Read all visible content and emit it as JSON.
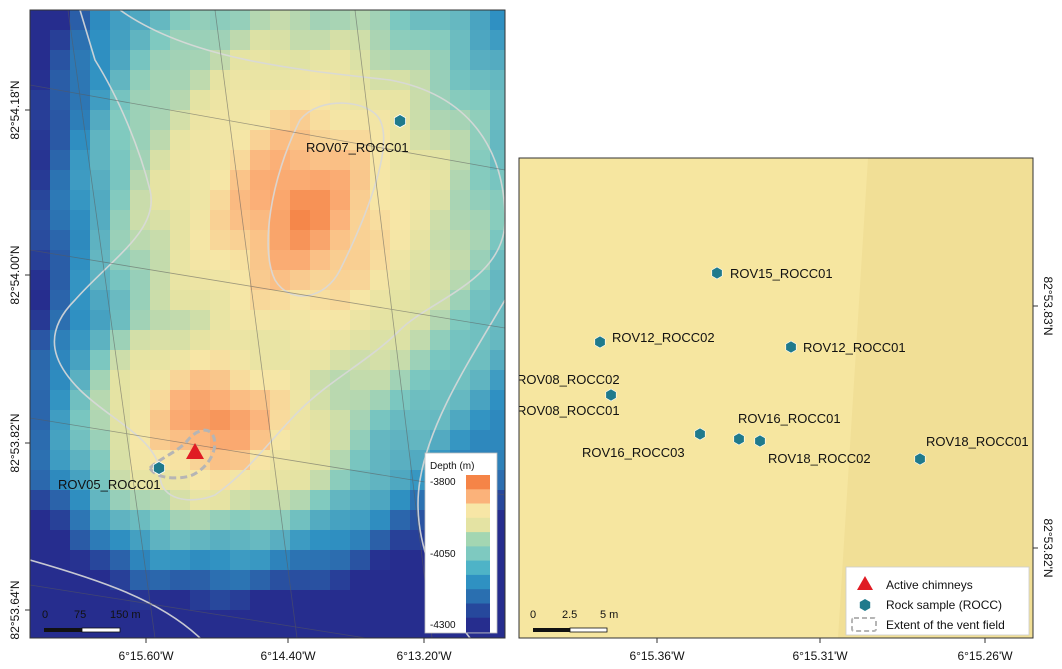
{
  "left_map": {
    "lat_labels": [
      "82°54.18'N",
      "82°54.00'N",
      "82°53.82'N",
      "82°53.64'N"
    ],
    "lon_labels": [
      "6°15.60'W",
      "6°14.40'W",
      "6°13.20'W"
    ],
    "samples": [
      {
        "label": "ROV07_ROCC01"
      },
      {
        "label": "ROV05_ROCC01"
      }
    ],
    "legend": {
      "title": "Depth (m)",
      "ticks": [
        "-3800",
        "-4050",
        "-4300"
      ],
      "colors": [
        "#f58447",
        "#fbb27a",
        "#f7e6a6",
        "#e4e3a3",
        "#a3d6b2",
        "#7ec9c0",
        "#4eb3c7",
        "#2f91c2",
        "#2a6fb0",
        "#26489c",
        "#262d8e"
      ]
    },
    "scalebar": {
      "labels": [
        "0",
        "75",
        "150 m"
      ]
    }
  },
  "right_map": {
    "lat_labels": [
      "82°53.83'N",
      "82°53.82'N"
    ],
    "lon_labels": [
      "6°15.36'W",
      "6°15.31'W",
      "6°15.26'W"
    ],
    "samples": [
      {
        "label": "ROV15_ROCC01"
      },
      {
        "label": "ROV12_ROCC02"
      },
      {
        "label": "ROV12_ROCC01"
      },
      {
        "label": "ROV08_ROCC02"
      },
      {
        "label": "ROV08_ROCC01"
      },
      {
        "label": "ROV16_ROCC01"
      },
      {
        "label": "ROV16_ROCC03"
      },
      {
        "label": "ROV18_ROCC02"
      },
      {
        "label": "ROV18_ROCC01"
      }
    ],
    "legend": {
      "active_chimneys": "Active chimneys",
      "rock_sample": "Rock sample (ROCC)",
      "vent_extent": "Extent of the vent field"
    },
    "scalebar": {
      "labels": [
        "0",
        "2.5",
        "5 m"
      ]
    }
  },
  "colors": {
    "sample_marker": "#1f7a8c",
    "chimney": "#e01b24",
    "background_fill": "#f6e6a0"
  }
}
